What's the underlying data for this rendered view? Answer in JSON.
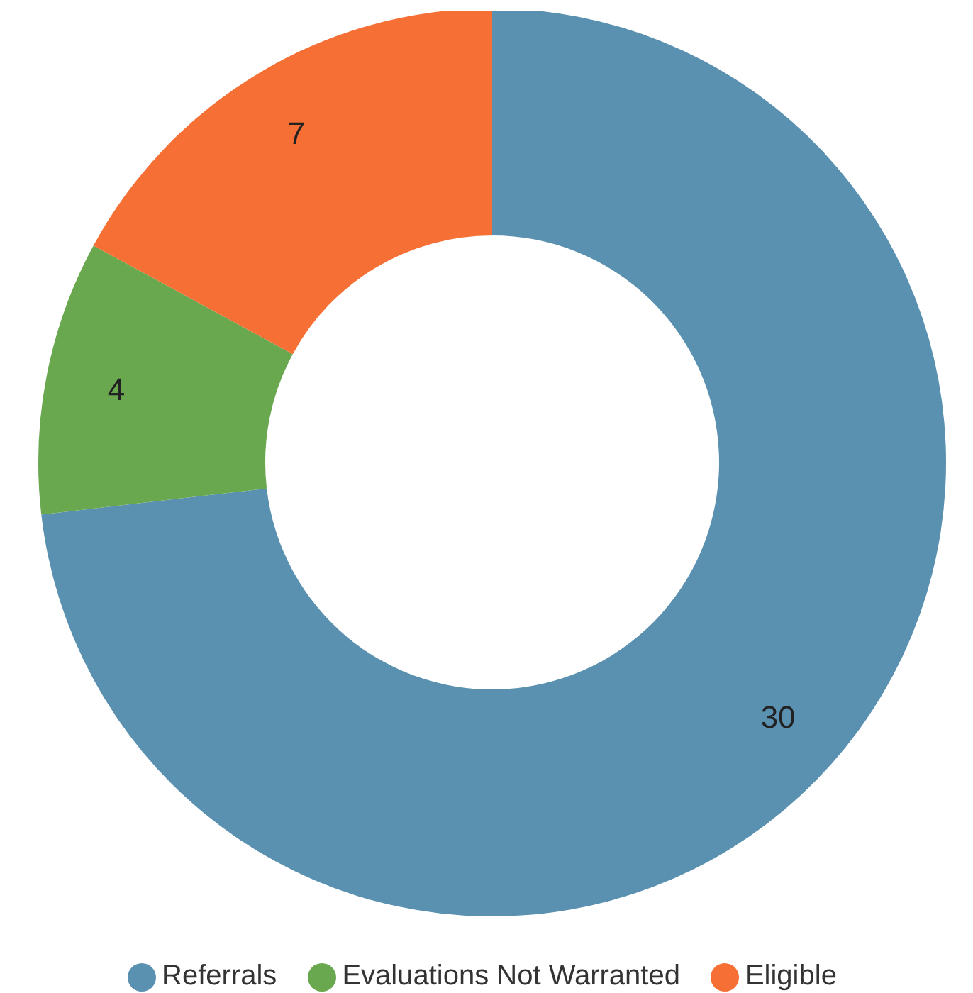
{
  "chart_data": {
    "type": "donut",
    "categories": [
      "Referrals",
      "Evaluations Not Warranted",
      "Eligible"
    ],
    "values": [
      30,
      4,
      7
    ],
    "colors": [
      "#5b91b0",
      "#6aa84f",
      "#f66f35"
    ],
    "data_labels": true,
    "legend": "bottom"
  }
}
